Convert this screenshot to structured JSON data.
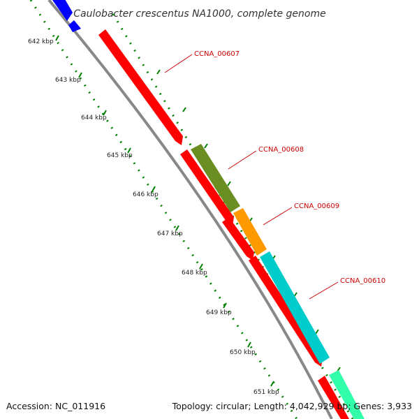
{
  "title": "Caulobacter crescentus NA1000, complete genome",
  "footer": {
    "accession": "Accession: NC_011916",
    "summary": "Topology: circular; Length: 4,042,929 bp; Genes: 3,933"
  },
  "ruler_labels": [
    "642 kbp",
    "643 kbp",
    "644 kbp",
    "645 kbp",
    "646 kbp",
    "647 kbp",
    "648 kbp",
    "649 kbp",
    "650 kbp",
    "651 kbp"
  ],
  "gene_labels": [
    "CCNA_00607",
    "CCNA_00608",
    "CCNA_00609",
    "CCNA_00610"
  ],
  "colors": {
    "cds": "#ff0000",
    "gene_608": "#6b8e23",
    "gene_609": "#ff9900",
    "gene_610": "#00cccc",
    "gene_next": "#33ffaa",
    "gene_prev": "#0000ff",
    "backbone": "#888888",
    "ticks": "#008000",
    "label_line": "#cc0000"
  }
}
